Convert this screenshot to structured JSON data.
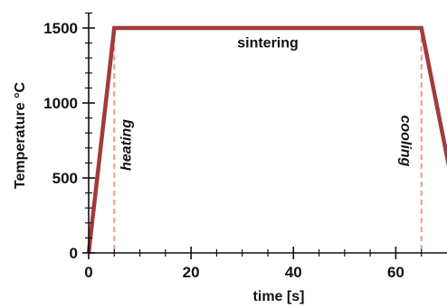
{
  "chart_data": {
    "type": "line",
    "xlabel": "time [s]",
    "ylabel": "Temperature °C",
    "xlim": [
      0,
      70
    ],
    "ylim": [
      0,
      1500
    ],
    "x_ticks": [
      0,
      20,
      40,
      60
    ],
    "x_tick_labels": [
      "0",
      "20",
      "40",
      "60"
    ],
    "y_ticks": [
      0,
      500,
      1000,
      1500
    ],
    "y_tick_labels": [
      "0",
      "500",
      "1000",
      "1500"
    ],
    "grid": false,
    "series": [
      {
        "x": [
          0,
          5,
          65,
          72
        ],
        "y": [
          0,
          1500,
          1500,
          300
        ],
        "color": "#a33a3a"
      }
    ],
    "phase_markers": [
      {
        "x": 5,
        "color": "#e89a94"
      },
      {
        "x": 65,
        "color": "#e89a94"
      }
    ],
    "annotations": [
      {
        "text": "heating",
        "x": 5,
        "y": 750,
        "rotation": -90
      },
      {
        "text": "sintering",
        "x": 35,
        "y": 1370,
        "rotation": 0
      },
      {
        "text": "cooling",
        "x": 65,
        "y": 820,
        "rotation": 90
      }
    ]
  }
}
